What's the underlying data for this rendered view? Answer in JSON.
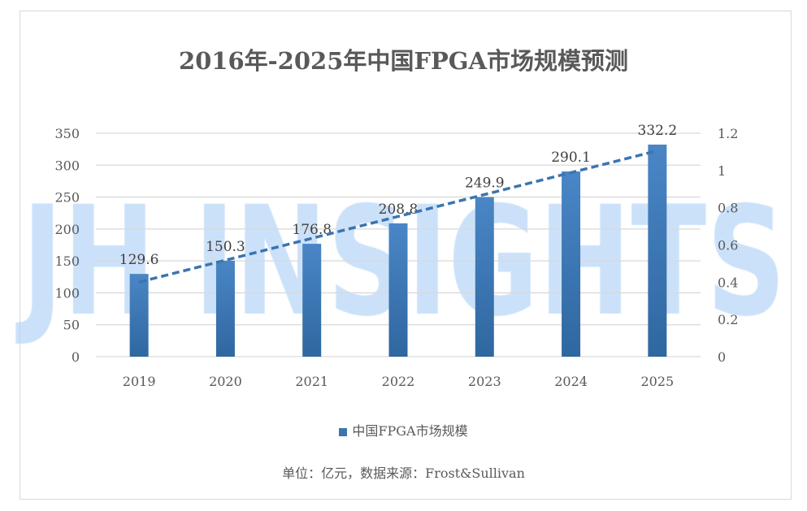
{
  "chart_data": {
    "type": "bar",
    "title": "2016年-2025年中国FPGA市场规模预测",
    "categories": [
      "2019",
      "2020",
      "2021",
      "2022",
      "2023",
      "2024",
      "2025"
    ],
    "series": [
      {
        "name": "中国FPGA市场规模",
        "values": [
          129.6,
          150.3,
          176.8,
          208.8,
          249.9,
          290.1,
          332.2
        ]
      }
    ],
    "trendline": {
      "type": "linear",
      "style": "dashed"
    },
    "ylim": [
      0,
      350
    ],
    "yticks": [
      "0",
      "50",
      "100",
      "150",
      "200",
      "250",
      "300",
      "350"
    ],
    "y2lim": [
      0,
      1.2
    ],
    "y2ticks": [
      "0",
      "0.2",
      "0.4",
      "0.6",
      "0.8",
      "1",
      "1.2"
    ],
    "grid": true,
    "legend": "bottom",
    "colors": {
      "bar": "#3a75b0",
      "trend": "#3a75b0",
      "grid": "#d9d9d9"
    },
    "watermark": "JH INSIGHTS",
    "source": "单位：亿元，数据来源：Frost&Sullivan"
  }
}
